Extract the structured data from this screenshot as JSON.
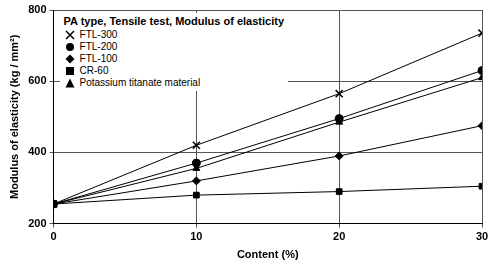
{
  "chart_data": {
    "type": "line",
    "title": "PA type, Tensile test, Modulus of elasticity",
    "x_label": "Content (%)",
    "y_label": "Modulus of elasticity (kg / mm²)",
    "x": [
      0,
      10,
      20,
      30
    ],
    "series": [
      {
        "name": "FTL-300",
        "color": "#000000",
        "marker": "x",
        "values": [
          255,
          420,
          565,
          735
        ]
      },
      {
        "name": "FTL-200",
        "color": "#000000",
        "marker": "circle",
        "values": [
          255,
          370,
          495,
          630
        ]
      },
      {
        "name": "FTL-100",
        "color": "#000000",
        "marker": "diamond",
        "values": [
          255,
          320,
          390,
          475
        ]
      },
      {
        "name": "CR-60",
        "color": "#000000",
        "marker": "square",
        "values": [
          255,
          280,
          290,
          305
        ]
      },
      {
        "name": "Potassium titanate material",
        "color": "#000000",
        "marker": "triangle",
        "values": [
          255,
          355,
          485,
          610
        ]
      }
    ],
    "xlim": [
      0,
      30
    ],
    "xticks": [
      0,
      10,
      20,
      30
    ],
    "ylim": [
      200,
      800
    ],
    "yticks": [
      200,
      400,
      600,
      800
    ],
    "grid": true,
    "legend": "upper left"
  }
}
